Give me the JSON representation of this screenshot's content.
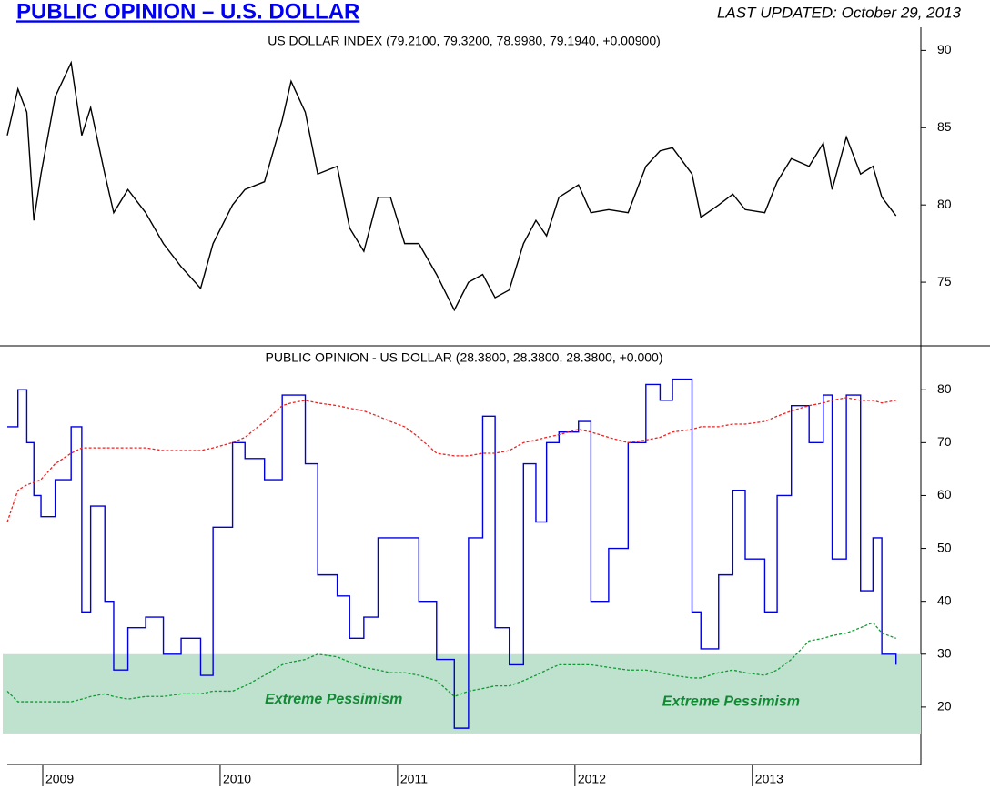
{
  "header": {
    "title": "PUBLIC OPINION – U.S. DOLLAR",
    "updated": "LAST UPDATED:  October 29, 2013"
  },
  "chart_data": [
    {
      "type": "line",
      "title": "US DOLLAR INDEX (79.2100, 79.3200, 78.9980, 79.1940, +0.00900)",
      "x": [
        2008.8,
        2008.86,
        2008.91,
        2008.95,
        2008.99,
        2009.07,
        2009.16,
        2009.22,
        2009.27,
        2009.35,
        2009.4,
        2009.48,
        2009.58,
        2009.68,
        2009.78,
        2009.89,
        2009.96,
        2010.07,
        2010.14,
        2010.25,
        2010.35,
        2010.4,
        2010.48,
        2010.55,
        2010.66,
        2010.73,
        2010.81,
        2010.89,
        2010.96,
        2011.04,
        2011.12,
        2011.22,
        2011.32,
        2011.4,
        2011.48,
        2011.55,
        2011.63,
        2011.71,
        2011.78,
        2011.84,
        2011.91,
        2012.02,
        2012.09,
        2012.19,
        2012.3,
        2012.4,
        2012.48,
        2012.55,
        2012.66,
        2012.71,
        2012.81,
        2012.89,
        2012.96,
        2013.07,
        2013.14,
        2013.22,
        2013.32,
        2013.4,
        2013.45,
        2013.53,
        2013.61,
        2013.68,
        2013.73,
        2013.81
      ],
      "xlim": [
        2008.8,
        2013.95
      ],
      "ylim": [
        71,
        91.2
      ],
      "yticks": [
        75,
        80,
        85,
        90
      ],
      "series": [
        {
          "color": "#000000",
          "values": [
            84.5,
            87.5,
            86,
            79,
            82,
            87,
            89.2,
            84.5,
            86.3,
            82,
            79.5,
            81,
            79.5,
            77.5,
            76,
            74.6,
            77.5,
            80,
            81,
            81.5,
            85.5,
            88,
            86,
            82,
            82.5,
            78.5,
            77,
            80.5,
            80.5,
            77.5,
            77.5,
            75.5,
            73.2,
            75,
            75.5,
            74,
            74.5,
            77.5,
            79,
            78,
            80.5,
            81.3,
            79.5,
            79.7,
            79.5,
            82.5,
            83.5,
            83.7,
            82,
            79.2,
            80,
            80.7,
            79.7,
            79.5,
            81.5,
            83,
            82.5,
            84,
            81,
            84.4,
            82,
            82.5,
            80.5,
            79.3
          ]
        }
      ]
    },
    {
      "type": "line",
      "title": "PUBLIC OPINION - US DOLLAR (28.3800, 28.3800, 28.3800, +0.000)",
      "x": [
        2008.8,
        2008.86,
        2008.91,
        2008.95,
        2008.99,
        2009.07,
        2009.16,
        2009.22,
        2009.27,
        2009.35,
        2009.4,
        2009.48,
        2009.58,
        2009.68,
        2009.78,
        2009.89,
        2009.96,
        2010.07,
        2010.14,
        2010.25,
        2010.35,
        2010.4,
        2010.48,
        2010.55,
        2010.66,
        2010.73,
        2010.81,
        2010.89,
        2010.96,
        2011.04,
        2011.12,
        2011.22,
        2011.32,
        2011.4,
        2011.48,
        2011.55,
        2011.63,
        2011.71,
        2011.78,
        2011.84,
        2011.91,
        2012.02,
        2012.09,
        2012.19,
        2012.3,
        2012.4,
        2012.48,
        2012.55,
        2012.66,
        2012.71,
        2012.81,
        2012.89,
        2012.96,
        2013.07,
        2013.14,
        2013.22,
        2013.32,
        2013.4,
        2013.45,
        2013.53,
        2013.61,
        2013.68,
        2013.73,
        2013.81
      ],
      "xlim": [
        2008.8,
        2013.95
      ],
      "xticks": [
        2009,
        2010,
        2011,
        2012,
        2013
      ],
      "ylim": [
        10,
        88.3
      ],
      "yticks": [
        20,
        30,
        40,
        50,
        60,
        70,
        80
      ],
      "band": {
        "range": [
          15,
          30
        ],
        "color": "#bfe2cf"
      },
      "series": [
        {
          "color": "#0000dd",
          "step": true,
          "values": [
            73,
            80,
            70,
            60,
            56,
            63,
            73,
            38,
            58,
            40,
            27,
            35,
            37,
            30,
            33,
            26,
            54,
            70,
            67,
            63,
            79,
            79,
            66,
            45,
            41,
            33,
            37,
            52,
            52,
            52,
            40,
            29,
            16,
            52,
            75,
            35,
            28,
            66,
            55,
            70,
            72,
            74,
            40,
            50,
            70,
            81,
            78,
            82,
            38,
            31,
            45,
            61,
            48,
            38,
            60,
            77,
            70,
            79,
            48,
            79,
            42,
            52,
            30,
            28
          ]
        },
        {
          "color": "#ee2222",
          "dashed": true,
          "values": [
            55,
            61,
            62,
            62.5,
            63,
            66,
            68,
            69,
            69,
            69,
            69,
            69,
            69,
            68.5,
            68.5,
            68.5,
            69,
            70,
            71,
            74,
            77,
            77.5,
            78,
            77.5,
            77,
            76.5,
            76,
            75,
            74,
            73,
            71,
            68,
            67.5,
            67.5,
            68,
            68,
            68.5,
            70,
            70.5,
            71,
            71.5,
            72.5,
            72,
            71,
            70,
            70.5,
            71,
            72,
            72.5,
            73,
            73,
            73.5,
            73.5,
            74,
            75,
            76,
            77,
            77.5,
            78,
            78.5,
            78,
            78,
            77.5,
            78
          ]
        },
        {
          "color": "#119933",
          "dashed": true,
          "values": [
            23,
            21,
            21,
            21,
            21,
            21,
            21,
            21.5,
            22,
            22.5,
            22,
            21.5,
            22,
            22,
            22.5,
            22.5,
            23,
            23,
            24,
            26,
            28,
            28.5,
            29,
            30,
            29.5,
            28.5,
            27.5,
            27,
            26.5,
            26.5,
            26,
            25,
            22,
            23,
            23.5,
            24,
            24,
            25,
            26,
            27,
            28,
            28,
            28,
            27.5,
            27,
            27,
            26.5,
            26,
            25.5,
            25.5,
            26.5,
            27,
            26.5,
            26,
            27,
            29,
            32.5,
            33,
            33.5,
            34,
            35,
            36,
            34,
            33
          ]
        }
      ],
      "annotations": [
        {
          "text": "Extreme Pessimism",
          "x": 2010.64,
          "y": 21.4
        },
        {
          "text": "Extreme Pessimism",
          "x": 2012.88,
          "y": 21
        }
      ]
    }
  ]
}
